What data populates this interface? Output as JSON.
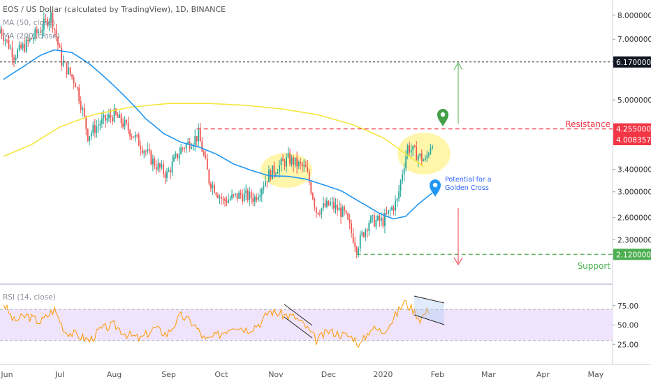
{
  "header": {
    "symbol": "EOS / US Dollar (calculated by TradingView), 1D, BINANCE",
    "ma_short": "MA (50, close)",
    "ma_long": "MA (200, close)",
    "rsi_label": "RSI (14, close)"
  },
  "annotations": {
    "resistance_label": "Resistance",
    "support_label": "Support",
    "golden_cross_line1": "Potential for a",
    "golden_cross_line2": "Golden Cross"
  },
  "colors": {
    "up": "#26a69a",
    "down": "#ef5350",
    "ma50": "#2196f3",
    "ma200": "#f5e63c",
    "rsi": "#ff9800",
    "rsi_band": "#efe4fb",
    "resistance": "#f23645",
    "support": "#4caf50",
    "highlight": "#fff59d"
  },
  "chart_data": [
    {
      "type": "candlestick",
      "title": "EOS / US Dollar (calculated by TradingView), 1D, BINANCE",
      "x_ticks": [
        "Jun",
        "Jul",
        "Aug",
        "Sep",
        "Oct",
        "Nov",
        "Dec",
        "2020",
        "Feb",
        "Mar",
        "Apr",
        "May"
      ],
      "y_ticks": [
        "8.0000000",
        "7.0000000",
        "5.0000000",
        "3.4000000",
        "3.0000000",
        "2.6000000",
        "2.3000000"
      ],
      "y_scale": "log",
      "ylim": [
        1.95,
        8.3
      ],
      "price_labels": [
        {
          "value": 6.17,
          "text": "6.1700000",
          "role": "level"
        },
        {
          "value": 4.255,
          "text": "4.2550000",
          "role": "resistance"
        },
        {
          "value": 4.0083579,
          "text": "4.0083579",
          "role": "last"
        },
        {
          "value": 2.12,
          "text": "2.1200000",
          "role": "support"
        }
      ],
      "levels": {
        "resistance": 4.255,
        "support": 2.12,
        "target": 6.17
      },
      "series": [
        {
          "name": "MA (50, close)",
          "anchors": [
            [
              "2019-05-30",
              5.6
            ],
            [
              "2019-06-10",
              6.0
            ],
            [
              "2019-06-20",
              6.4
            ],
            [
              "2019-06-28",
              6.6
            ],
            [
              "2019-07-08",
              6.5
            ],
            [
              "2019-07-18",
              6.1
            ],
            [
              "2019-07-28",
              5.6
            ],
            [
              "2019-08-09",
              5.0
            ],
            [
              "2019-08-19",
              4.5
            ],
            [
              "2019-08-29",
              4.15
            ],
            [
              "2019-09-08",
              3.95
            ],
            [
              "2019-09-18",
              3.85
            ],
            [
              "2019-09-28",
              3.7
            ],
            [
              "2019-10-08",
              3.5
            ],
            [
              "2019-10-18",
              3.38
            ],
            [
              "2019-10-28",
              3.28
            ],
            [
              "2019-11-08",
              3.27
            ],
            [
              "2019-11-18",
              3.22
            ],
            [
              "2019-11-28",
              3.12
            ],
            [
              "2019-12-08",
              3.02
            ],
            [
              "2019-12-18",
              2.85
            ],
            [
              "2019-12-30",
              2.66
            ],
            [
              "2020-01-07",
              2.58
            ],
            [
              "2020-01-14",
              2.62
            ],
            [
              "2020-01-21",
              2.8
            ],
            [
              "2020-01-29",
              2.98
            ]
          ]
        },
        {
          "name": "MA (200, close)",
          "anchors": [
            [
              "2019-05-30",
              3.65
            ],
            [
              "2019-06-15",
              3.9
            ],
            [
              "2019-07-01",
              4.3
            ],
            [
              "2019-07-20",
              4.6
            ],
            [
              "2019-08-10",
              4.8
            ],
            [
              "2019-09-01",
              4.9
            ],
            [
              "2019-09-24",
              4.9
            ],
            [
              "2019-10-15",
              4.85
            ],
            [
              "2019-11-05",
              4.75
            ],
            [
              "2019-11-25",
              4.6
            ],
            [
              "2019-12-15",
              4.35
            ],
            [
              "2020-01-01",
              4.05
            ],
            [
              "2020-01-14",
              3.7
            ],
            [
              "2020-01-24",
              3.45
            ]
          ]
        },
        {
          "name": "RSI (14, close)",
          "range": [
            0,
            100
          ],
          "bands": [
            30,
            70
          ],
          "y_ticks": [
            "75.00",
            "50.00",
            "25.00"
          ],
          "anchors": [
            [
              "2019-05-30",
              78
            ],
            [
              "2019-06-05",
              55
            ],
            [
              "2019-06-12",
              62
            ],
            [
              "2019-06-20",
              54
            ],
            [
              "2019-06-28",
              70
            ],
            [
              "2019-07-04",
              42
            ],
            [
              "2019-07-12",
              36
            ],
            [
              "2019-07-18",
              30
            ],
            [
              "2019-07-24",
              44
            ],
            [
              "2019-08-01",
              50
            ],
            [
              "2019-08-08",
              38
            ],
            [
              "2019-08-16",
              32
            ],
            [
              "2019-08-24",
              46
            ],
            [
              "2019-08-31",
              38
            ],
            [
              "2019-09-08",
              62
            ],
            [
              "2019-09-15",
              52
            ],
            [
              "2019-09-22",
              30
            ],
            [
              "2019-09-30",
              38
            ],
            [
              "2019-10-08",
              50
            ],
            [
              "2019-10-16",
              44
            ],
            [
              "2019-10-24",
              54
            ],
            [
              "2019-10-28",
              68
            ],
            [
              "2019-11-04",
              64
            ],
            [
              "2019-11-12",
              60
            ],
            [
              "2019-11-18",
              48
            ],
            [
              "2019-11-24",
              30
            ],
            [
              "2019-12-01",
              42
            ],
            [
              "2019-12-08",
              38
            ],
            [
              "2019-12-15",
              34
            ],
            [
              "2019-12-19",
              24
            ],
            [
              "2019-12-25",
              46
            ],
            [
              "2020-01-01",
              42
            ],
            [
              "2020-01-07",
              58
            ],
            [
              "2020-01-13",
              80
            ],
            [
              "2020-01-18",
              70
            ],
            [
              "2020-01-22",
              58
            ],
            [
              "2020-01-27",
              70
            ]
          ]
        }
      ]
    }
  ]
}
